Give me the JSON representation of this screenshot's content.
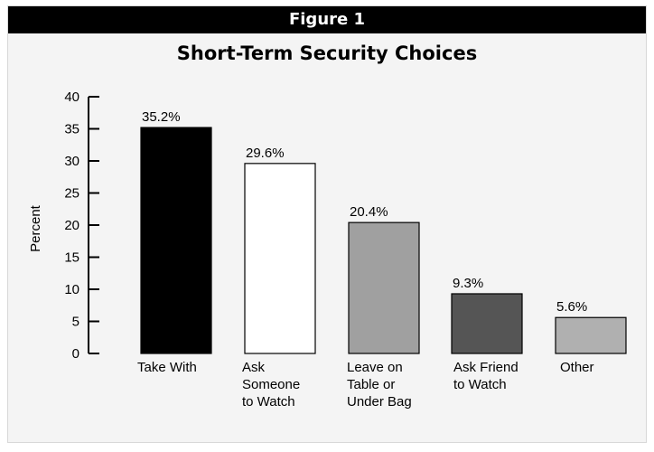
{
  "figure_label": "Figure 1",
  "chart_data": {
    "type": "bar",
    "title": "Short-Term Security Choices",
    "xlabel": "",
    "ylabel": "Percent",
    "ylim": [
      0,
      40
    ],
    "yticks": [
      0,
      5,
      10,
      15,
      20,
      25,
      30,
      35,
      40
    ],
    "grid": false,
    "categories": [
      "Take With",
      "Ask Someone to Watch",
      "Leave on Table or Under Bag",
      "Ask Friend to Watch",
      "Other"
    ],
    "category_lines": [
      [
        "Take With"
      ],
      [
        "Ask",
        "Someone",
        "to Watch"
      ],
      [
        "Leave on",
        "Table or",
        "Under Bag"
      ],
      [
        "Ask Friend",
        "to Watch"
      ],
      [
        "Other"
      ]
    ],
    "values": [
      35.2,
      29.6,
      20.4,
      9.3,
      5.6
    ],
    "value_labels": [
      "35.2%",
      "29.6%",
      "20.4%",
      "9.3%",
      "5.6%"
    ],
    "colors": [
      "#000000",
      "#ffffff",
      "#a0a0a0",
      "#555555",
      "#b0b0b0"
    ]
  }
}
